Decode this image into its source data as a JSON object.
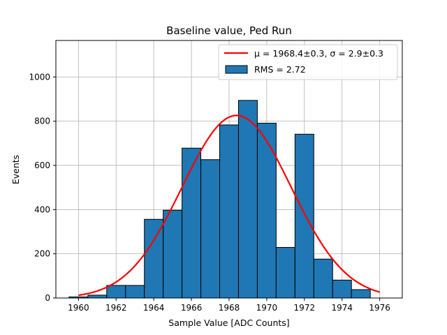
{
  "chart_data": {
    "type": "bar",
    "title": "Baseline value, Ped Run",
    "xlabel": "Sample Value [ADC Counts]",
    "ylabel": "Events",
    "xlim": [
      1958.8,
      1977.2
    ],
    "ylim": [
      0,
      1165
    ],
    "grid": true,
    "legend_position": "top-right",
    "x_ticks": [
      1960,
      1962,
      1964,
      1966,
      1968,
      1970,
      1972,
      1974,
      1976
    ],
    "y_ticks": [
      0,
      200,
      400,
      600,
      800,
      1000
    ],
    "bins": [
      {
        "left": 1959.5,
        "right": 1960.5,
        "count": 5
      },
      {
        "left": 1960.5,
        "right": 1961.5,
        "count": 13
      },
      {
        "left": 1961.5,
        "right": 1962.5,
        "count": 57
      },
      {
        "left": 1962.5,
        "right": 1963.5,
        "count": 57
      },
      {
        "left": 1963.5,
        "right": 1964.5,
        "count": 356
      },
      {
        "left": 1964.5,
        "right": 1965.5,
        "count": 397
      },
      {
        "left": 1965.5,
        "right": 1966.5,
        "count": 678
      },
      {
        "left": 1966.5,
        "right": 1967.5,
        "count": 626
      },
      {
        "left": 1967.5,
        "right": 1968.5,
        "count": 783
      },
      {
        "left": 1968.5,
        "right": 1969.5,
        "count": 894
      },
      {
        "left": 1969.5,
        "right": 1970.5,
        "count": 791
      },
      {
        "left": 1970.5,
        "right": 1971.5,
        "count": 229
      },
      {
        "left": 1971.5,
        "right": 1972.5,
        "count": 741
      },
      {
        "left": 1972.5,
        "right": 1973.5,
        "count": 176
      },
      {
        "left": 1973.5,
        "right": 1974.5,
        "count": 81
      },
      {
        "left": 1974.5,
        "right": 1975.5,
        "count": 38
      }
    ],
    "bar_color": "#1f77b4",
    "fit": {
      "mu": 1968.4,
      "sigma": 2.9,
      "amplitude": 826,
      "x_range": [
        1960,
        1976
      ],
      "color": "#ff0000"
    },
    "legend": [
      {
        "kind": "line",
        "label": "μ = 1968.4±0.3, σ = 2.9±0.3",
        "color": "#ff0000"
      },
      {
        "kind": "patch",
        "label": "RMS = 2.72",
        "color": "#1f77b4"
      }
    ]
  }
}
